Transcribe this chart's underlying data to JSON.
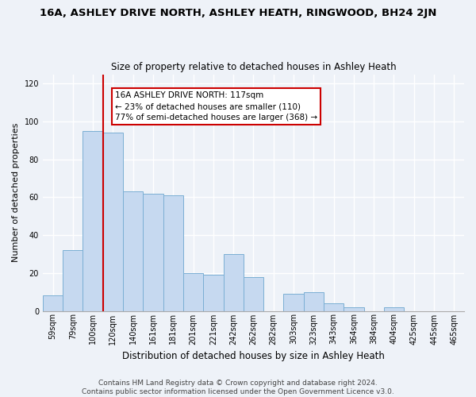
{
  "title": "16A, ASHLEY DRIVE NORTH, ASHLEY HEATH, RINGWOOD, BH24 2JN",
  "subtitle": "Size of property relative to detached houses in Ashley Heath",
  "xlabel": "Distribution of detached houses by size in Ashley Heath",
  "ylabel": "Number of detached properties",
  "bar_labels": [
    "59sqm",
    "79sqm",
    "100sqm",
    "120sqm",
    "140sqm",
    "161sqm",
    "181sqm",
    "201sqm",
    "221sqm",
    "242sqm",
    "262sqm",
    "282sqm",
    "303sqm",
    "323sqm",
    "343sqm",
    "364sqm",
    "384sqm",
    "404sqm",
    "425sqm",
    "445sqm",
    "465sqm"
  ],
  "bar_values": [
    8,
    32,
    95,
    94,
    63,
    62,
    61,
    20,
    19,
    30,
    18,
    0,
    9,
    10,
    4,
    2,
    0,
    2,
    0,
    0,
    0
  ],
  "bar_color": "#c6d9f0",
  "bar_edge_color": "#7bafd4",
  "vline_x": 2.5,
  "vline_color": "#cc0000",
  "ylim": [
    0,
    125
  ],
  "yticks": [
    0,
    20,
    40,
    60,
    80,
    100,
    120
  ],
  "annotation_text": "16A ASHLEY DRIVE NORTH: 117sqm\n← 23% of detached houses are smaller (110)\n77% of semi-detached houses are larger (368) →",
  "annotation_box_color": "#ffffff",
  "annotation_box_edge": "#cc0000",
  "footer_text": "Contains HM Land Registry data © Crown copyright and database right 2024.\nContains public sector information licensed under the Open Government Licence v3.0.",
  "background_color": "#eef2f8",
  "grid_color": "#ffffff",
  "title_fontsize": 9.5,
  "subtitle_fontsize": 8.5,
  "xlabel_fontsize": 8.5,
  "ylabel_fontsize": 8.0,
  "tick_fontsize": 7.0,
  "annot_fontsize": 7.5,
  "footer_fontsize": 6.5
}
